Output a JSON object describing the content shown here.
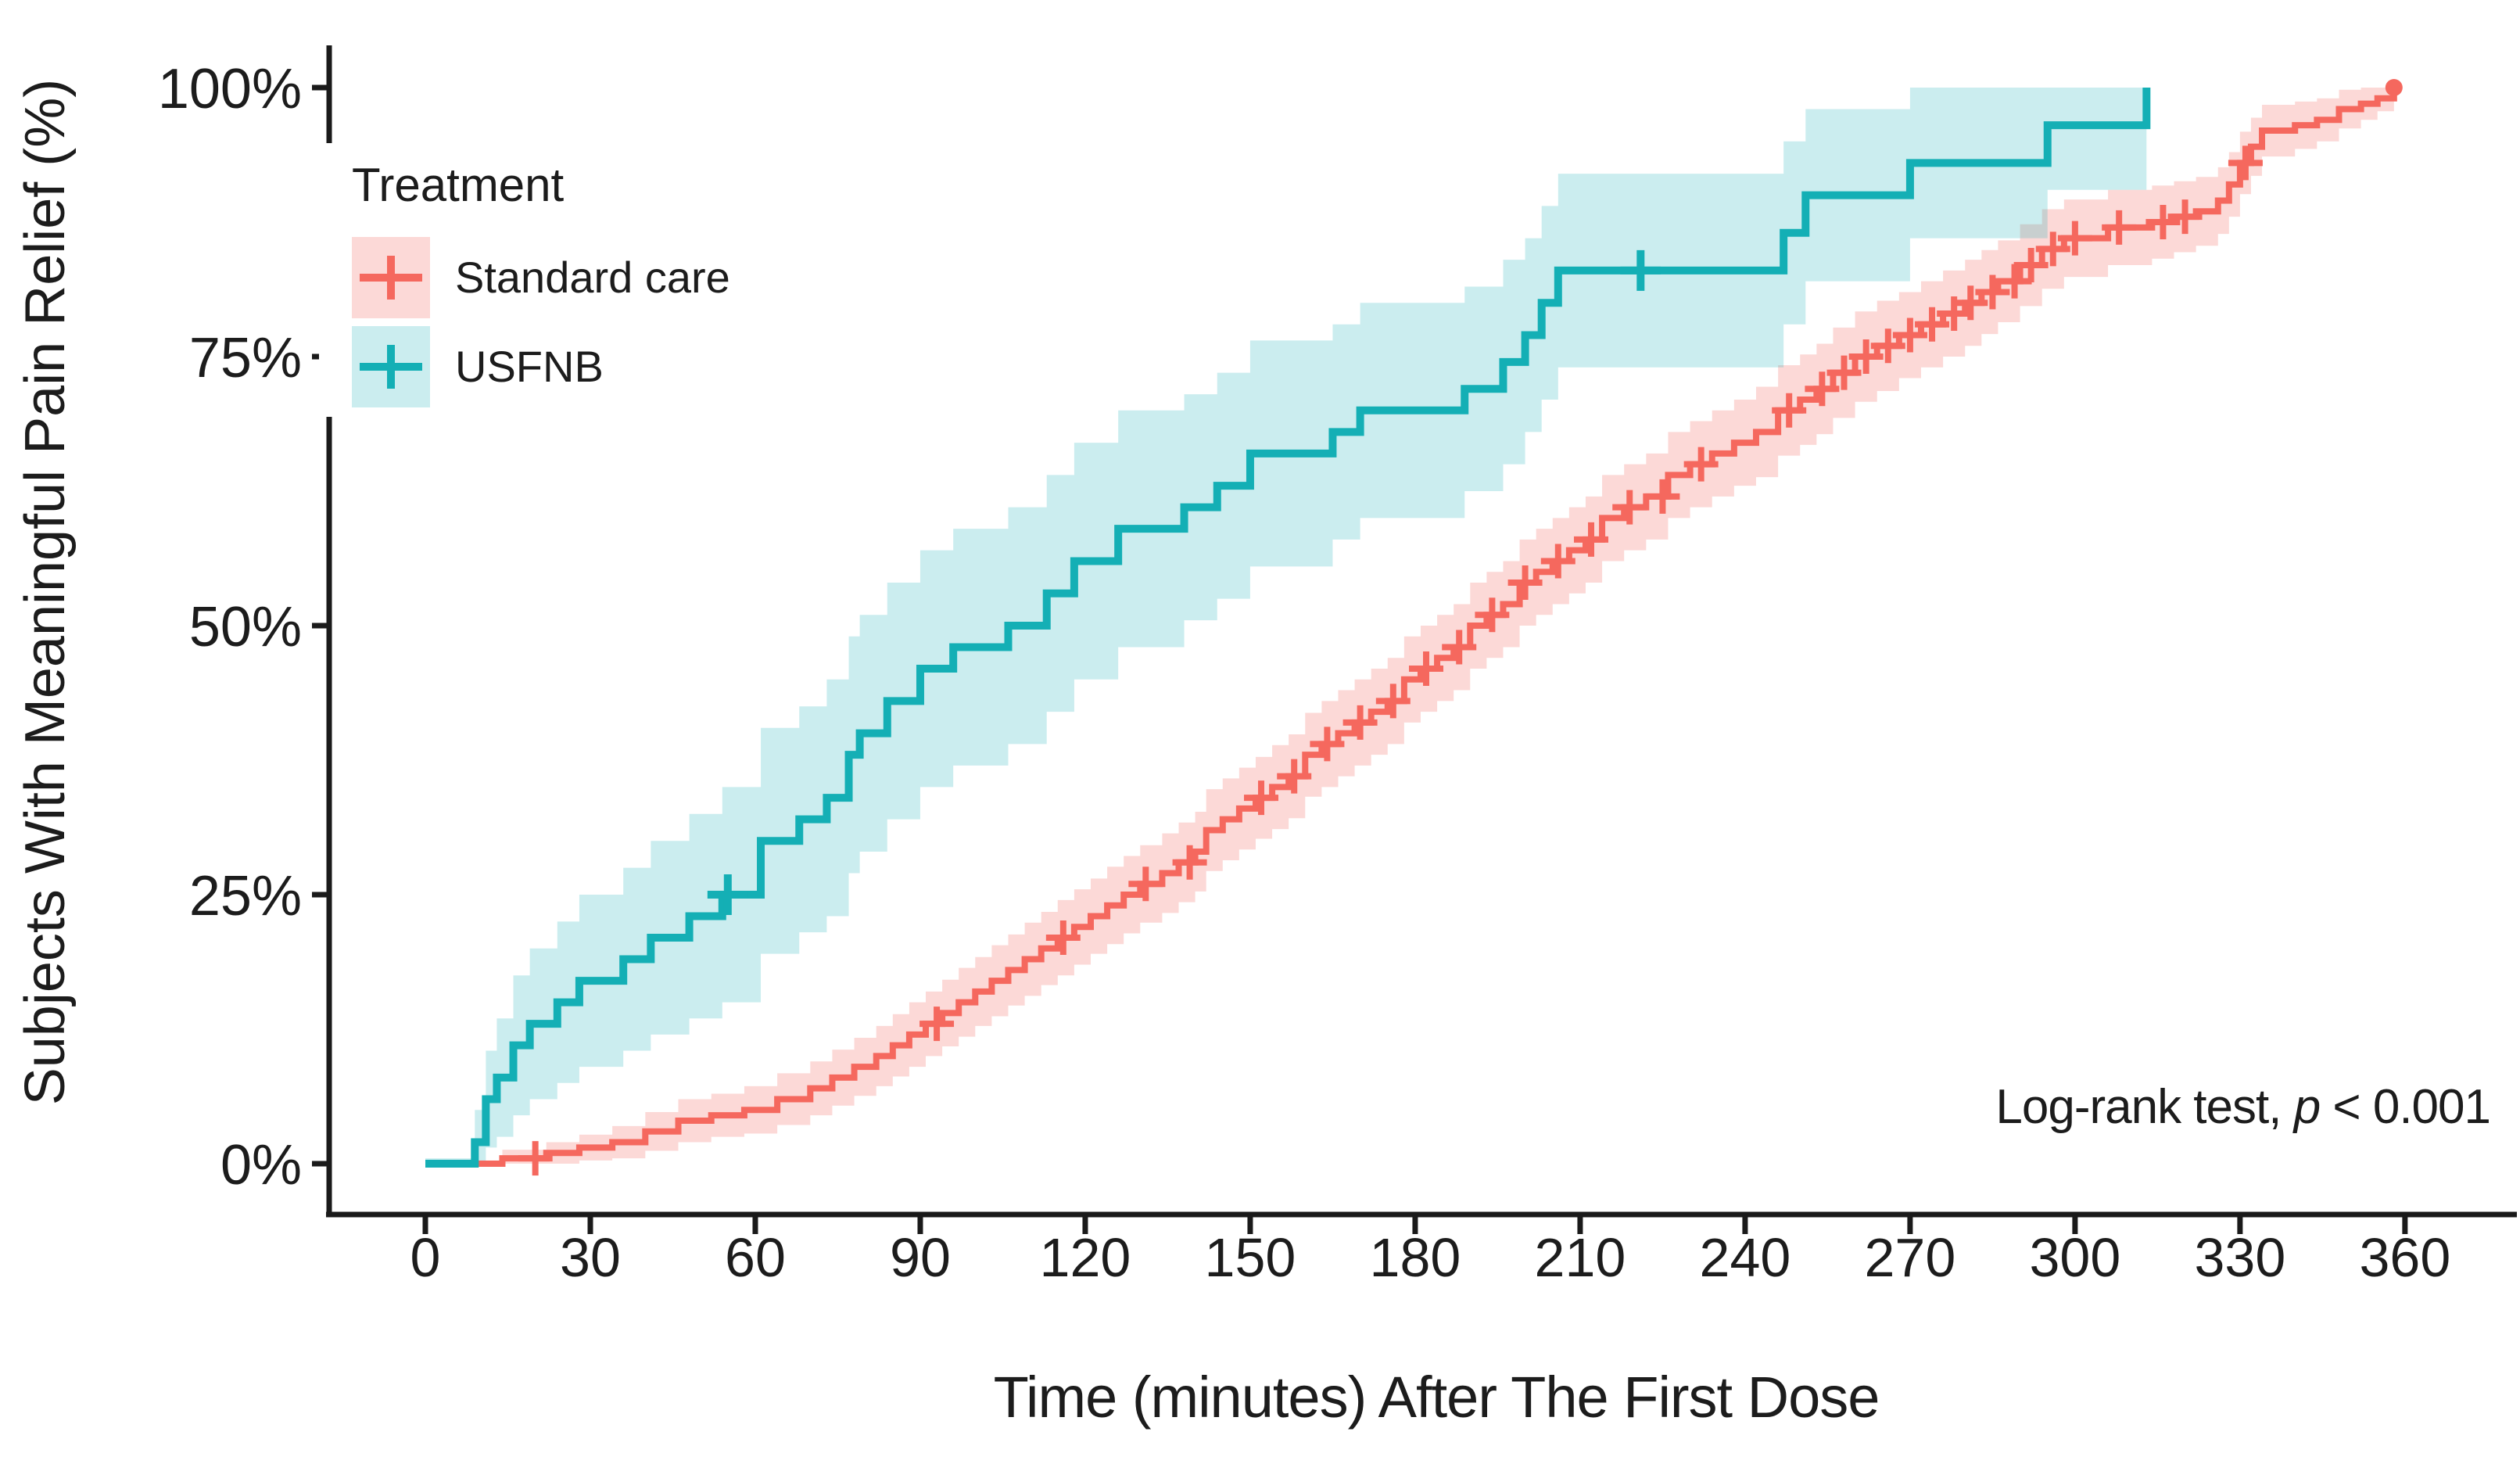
{
  "y_axis": {
    "title": "Subjects With Meaningful Pain Relief (%)",
    "ticks": [
      {
        "label": "100%",
        "value": 100
      },
      {
        "label": "75%",
        "value": 75
      },
      {
        "label": "50%",
        "value": 50
      },
      {
        "label": "25%",
        "value": 25
      },
      {
        "label": "0%",
        "value": 0
      }
    ]
  },
  "x_axis": {
    "title": "Time (minutes) After The First Dose",
    "ticks": [
      {
        "label": "0",
        "value": 0
      },
      {
        "label": "30",
        "value": 30
      },
      {
        "label": "60",
        "value": 60
      },
      {
        "label": "90",
        "value": 90
      },
      {
        "label": "120",
        "value": 120
      },
      {
        "label": "150",
        "value": 150
      },
      {
        "label": "180",
        "value": 180
      },
      {
        "label": "210",
        "value": 210
      },
      {
        "label": "240",
        "value": 240
      },
      {
        "label": "270",
        "value": 270
      },
      {
        "label": "300",
        "value": 300
      },
      {
        "label": "330",
        "value": 330
      },
      {
        "label": "360",
        "value": 360
      }
    ]
  },
  "legend": {
    "title": "Treatment",
    "items": [
      {
        "label": "Standard care",
        "series": "standard_care"
      },
      {
        "label": "USFNB",
        "series": "usfnb"
      }
    ]
  },
  "annotation": {
    "text_before_p": "Log-rank test, ",
    "p_symbol": "p",
    "text_after_p": " < 0.001"
  },
  "colors": {
    "standard_care_line": "#f5685e",
    "standard_care_band": "rgba(245,104,94,0.25)",
    "usfnb_line": "#14afb5",
    "usfnb_band": "rgba(20,175,181,0.22)",
    "axis": "#1a1a1a",
    "text": "#1c1c1c",
    "legend_bg": "#ffffff"
  },
  "chart_data": {
    "type": "line",
    "subtype": "kaplan-meier-cumulative-incidence-steps",
    "title": "",
    "xlabel": "Time (minutes) After The First Dose",
    "ylabel": "Subjects With Meaningful Pain Relief (%)",
    "xlim": [
      0,
      360
    ],
    "ylim": [
      0,
      100
    ],
    "grid": false,
    "legend_position": "inside-top-left",
    "series": [
      {
        "name": "Standard care",
        "points_t_pct_ciHalfWidth": [
          [
            0,
            0,
            0.3
          ],
          [
            14,
            0.5,
            0.8
          ],
          [
            22,
            1,
            1.0
          ],
          [
            28,
            1.5,
            1.2
          ],
          [
            34,
            2,
            1.5
          ],
          [
            40,
            3,
            1.8
          ],
          [
            46,
            4,
            2.0
          ],
          [
            52,
            4.5,
            2.0
          ],
          [
            58,
            5,
            2.2
          ],
          [
            64,
            6,
            2.4
          ],
          [
            70,
            7,
            2.5
          ],
          [
            74,
            8,
            2.6
          ],
          [
            78,
            9,
            2.7
          ],
          [
            82,
            10,
            2.8
          ],
          [
            85,
            11,
            2.9
          ],
          [
            88,
            12,
            3.0
          ],
          [
            91,
            13,
            3.0
          ],
          [
            94,
            14,
            3.1
          ],
          [
            97,
            15,
            3.2
          ],
          [
            100,
            16,
            3.2
          ],
          [
            103,
            17,
            3.3
          ],
          [
            106,
            18,
            3.3
          ],
          [
            109,
            19,
            3.4
          ],
          [
            112,
            20,
            3.4
          ],
          [
            115,
            21,
            3.5
          ],
          [
            118,
            22,
            3.5
          ],
          [
            121,
            23,
            3.5
          ],
          [
            124,
            24,
            3.6
          ],
          [
            127,
            25,
            3.6
          ],
          [
            130,
            26,
            3.6
          ],
          [
            134,
            27,
            3.7
          ],
          [
            137,
            28,
            3.7
          ],
          [
            140,
            29,
            3.7
          ],
          [
            142,
            31,
            3.8
          ],
          [
            145,
            32,
            3.8
          ],
          [
            148,
            33,
            3.8
          ],
          [
            151,
            34,
            3.8
          ],
          [
            154,
            35,
            3.9
          ],
          [
            157,
            36,
            3.9
          ],
          [
            160,
            38,
            3.9
          ],
          [
            163,
            39,
            4.0
          ],
          [
            166,
            40,
            4.0
          ],
          [
            169,
            41,
            4.0
          ],
          [
            172,
            42,
            4.0
          ],
          [
            175,
            43,
            4.0
          ],
          [
            178,
            45,
            4.0
          ],
          [
            181,
            46,
            4.0
          ],
          [
            184,
            47,
            4.0
          ],
          [
            187,
            48,
            4.0
          ],
          [
            190,
            50,
            4.0
          ],
          [
            193,
            51,
            4.0
          ],
          [
            196,
            52,
            4.0
          ],
          [
            199,
            54,
            4.0
          ],
          [
            202,
            55,
            4.0
          ],
          [
            205,
            56,
            4.0
          ],
          [
            208,
            57,
            4.0
          ],
          [
            211,
            58,
            4.0
          ],
          [
            214,
            60,
            4.0
          ],
          [
            218,
            61,
            4.0
          ],
          [
            222,
            62,
            4.0
          ],
          [
            226,
            64,
            4.0
          ],
          [
            230,
            65,
            4.0
          ],
          [
            234,
            66,
            4.0
          ],
          [
            238,
            67,
            4.0
          ],
          [
            242,
            68,
            4.2
          ],
          [
            246,
            70,
            4.2
          ],
          [
            250,
            71,
            4.2
          ],
          [
            253,
            72,
            4.2
          ],
          [
            256,
            73.5,
            4.2
          ],
          [
            260,
            75,
            4.2
          ],
          [
            264,
            76,
            4.2
          ],
          [
            268,
            77,
            4.0
          ],
          [
            272,
            78,
            4.0
          ],
          [
            276,
            79,
            4.0
          ],
          [
            280,
            80,
            4.0
          ],
          [
            283,
            81,
            3.9
          ],
          [
            286,
            82,
            3.8
          ],
          [
            290,
            83.5,
            3.8
          ],
          [
            294,
            85,
            3.7
          ],
          [
            298,
            86,
            3.6
          ],
          [
            306,
            87,
            3.5
          ],
          [
            314,
            87.5,
            3.4
          ],
          [
            318,
            88,
            3.3
          ],
          [
            322,
            88.5,
            3.2
          ],
          [
            326,
            89.5,
            3.1
          ],
          [
            328,
            91,
            3.0
          ],
          [
            330,
            93,
            2.9
          ],
          [
            332,
            94.5,
            2.7
          ],
          [
            334,
            96,
            2.4
          ],
          [
            340,
            96.5,
            2.2
          ],
          [
            344,
            97,
            2.0
          ],
          [
            348,
            98,
            1.8
          ],
          [
            352,
            98.5,
            1.5
          ],
          [
            355,
            99,
            1.2
          ],
          [
            358,
            100,
            0.8
          ]
        ],
        "censor_marks_t_pct": [
          [
            20,
            0.5
          ],
          [
            93,
            13
          ],
          [
            116,
            21
          ],
          [
            131,
            26
          ],
          [
            139,
            28
          ],
          [
            152,
            34
          ],
          [
            158,
            36
          ],
          [
            164,
            39
          ],
          [
            170,
            41
          ],
          [
            176,
            43
          ],
          [
            182,
            46
          ],
          [
            188,
            48
          ],
          [
            194,
            51
          ],
          [
            200,
            54
          ],
          [
            206,
            56
          ],
          [
            212,
            58
          ],
          [
            219,
            61
          ],
          [
            225,
            62
          ],
          [
            232,
            65
          ],
          [
            248,
            70
          ],
          [
            254,
            72
          ],
          [
            258,
            73.5
          ],
          [
            262,
            75
          ],
          [
            266,
            76
          ],
          [
            270,
            77
          ],
          [
            274,
            78
          ],
          [
            278,
            79
          ],
          [
            281,
            80
          ],
          [
            285,
            81
          ],
          [
            289,
            82
          ],
          [
            292,
            83.5
          ],
          [
            296,
            85
          ],
          [
            300,
            86
          ],
          [
            308,
            87
          ],
          [
            316,
            87.5
          ],
          [
            320,
            88
          ],
          [
            331,
            93
          ]
        ],
        "end_dot_t_pct": [
          358,
          100
        ]
      },
      {
        "name": "USFNB",
        "points_t_pct_ciHalfWidth": [
          [
            0,
            0,
            0.5
          ],
          [
            9,
            2,
            3
          ],
          [
            11,
            6,
            4.5
          ],
          [
            13,
            8,
            5.5
          ],
          [
            16,
            11,
            6.5
          ],
          [
            19,
            13,
            7
          ],
          [
            24,
            15,
            7.5
          ],
          [
            28,
            17,
            8
          ],
          [
            36,
            19,
            8.5
          ],
          [
            41,
            21,
            9
          ],
          [
            48,
            23,
            9.5
          ],
          [
            54,
            25,
            10
          ],
          [
            61,
            30,
            10.5
          ],
          [
            68,
            32,
            10.5
          ],
          [
            73,
            34,
            11
          ],
          [
            77,
            38,
            11
          ],
          [
            79,
            40,
            11
          ],
          [
            84,
            43,
            11
          ],
          [
            90,
            46,
            11
          ],
          [
            96,
            48,
            11
          ],
          [
            106,
            50,
            11
          ],
          [
            113,
            53,
            11
          ],
          [
            118,
            56,
            11
          ],
          [
            126,
            59,
            11
          ],
          [
            138,
            61,
            10.5
          ],
          [
            144,
            63,
            10.5
          ],
          [
            150,
            66,
            10.5
          ],
          [
            165,
            68,
            10
          ],
          [
            170,
            70,
            10
          ],
          [
            189,
            72,
            9.5
          ],
          [
            196,
            74.5,
            9.5
          ],
          [
            200,
            77,
            9
          ],
          [
            203,
            80,
            9
          ],
          [
            206,
            83,
            9
          ],
          [
            247,
            86.5,
            8.5
          ],
          [
            251,
            90,
            8
          ],
          [
            270,
            93,
            7
          ],
          [
            295,
            96.5,
            6
          ],
          [
            313,
            100,
            8
          ]
        ],
        "censor_marks_t_pct": [
          [
            55,
            25
          ],
          [
            221,
            83
          ]
        ],
        "end_dot_t_pct": null
      }
    ]
  }
}
